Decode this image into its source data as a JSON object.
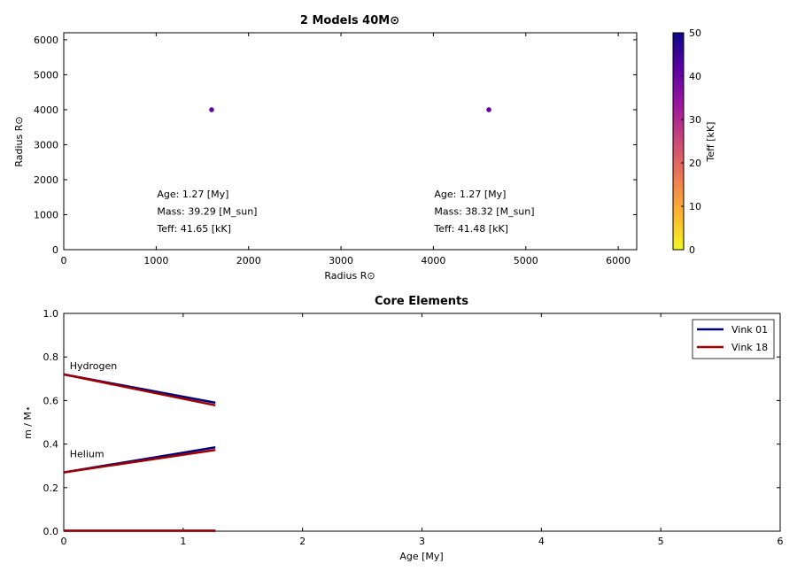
{
  "chart_data": [
    {
      "type": "scatter",
      "title": "2 Models 40M⊙",
      "xlabel": "Radius R⊙",
      "ylabel": "Radius R⊙",
      "xlim": [
        0,
        6200
      ],
      "ylim": [
        0,
        6200
      ],
      "xticks": [
        0,
        1000,
        2000,
        3000,
        4000,
        5000,
        6000
      ],
      "yticks": [
        0,
        1000,
        2000,
        3000,
        4000,
        5000,
        6000
      ],
      "points": [
        {
          "x": 1600,
          "y": 4000,
          "teff": 41.65
        },
        {
          "x": 4600,
          "y": 4000,
          "teff": 41.48
        }
      ],
      "annotations": [
        {
          "lines": [
            "Age: 1.27 [My]",
            "Mass: 39.29 [M_sun]",
            "Teff: 41.65 [kK]"
          ],
          "x": 1000
        },
        {
          "lines": [
            "Age: 1.27 [My]",
            "Mass: 38.32 [M_sun]",
            "Teff: 41.48 [kK]"
          ],
          "x": 4000
        }
      ],
      "colorbar": {
        "label": "Teff [kK]",
        "range": [
          0,
          50
        ],
        "ticks": [
          0,
          10,
          20,
          30,
          40,
          50
        ],
        "colormap": [
          "#f0f921",
          "#fdb42f",
          "#ed7953",
          "#cc4778",
          "#9c179e",
          "#5c01a6",
          "#0d0887"
        ]
      },
      "marker_color": "#6a00a8"
    },
    {
      "type": "line",
      "title": "Core Elements",
      "xlabel": "Age [My]",
      "ylabel": "m / M⋆",
      "xlim": [
        0,
        6
      ],
      "ylim": [
        0,
        1.0
      ],
      "xticks": [
        0,
        1,
        2,
        3,
        4,
        5,
        6
      ],
      "yticks": [
        0.0,
        0.2,
        0.4,
        0.6,
        0.8,
        1.0
      ],
      "ytick_labels": [
        "0.0",
        "0.2",
        "0.4",
        "0.6",
        "0.8",
        "1.0"
      ],
      "series": [
        {
          "name": "Vink 01",
          "color": "#00007f",
          "lines": [
            {
              "x": [
                0,
                1.27
              ],
              "y": [
                0.72,
                0.59
              ]
            },
            {
              "x": [
                0,
                1.27
              ],
              "y": [
                0.27,
                0.385
              ]
            },
            {
              "x": [
                0,
                1.27
              ],
              "y": [
                0.002,
                0.002
              ]
            }
          ]
        },
        {
          "name": "Vink 18",
          "color": "#a00000",
          "lines": [
            {
              "x": [
                0,
                1.27
              ],
              "y": [
                0.72,
                0.578
              ]
            },
            {
              "x": [
                0,
                1.27
              ],
              "y": [
                0.27,
                0.373
              ]
            },
            {
              "x": [
                0,
                1.27
              ],
              "y": [
                0.002,
                0.002
              ]
            }
          ]
        }
      ],
      "labels": [
        {
          "text": "Hydrogen",
          "x": 0.05,
          "y": 0.76
        },
        {
          "text": "Helium",
          "x": 0.05,
          "y": 0.355
        }
      ],
      "legend": {
        "placement": "top-right",
        "entries": [
          "Vink 01",
          "Vink 18"
        ]
      }
    }
  ]
}
